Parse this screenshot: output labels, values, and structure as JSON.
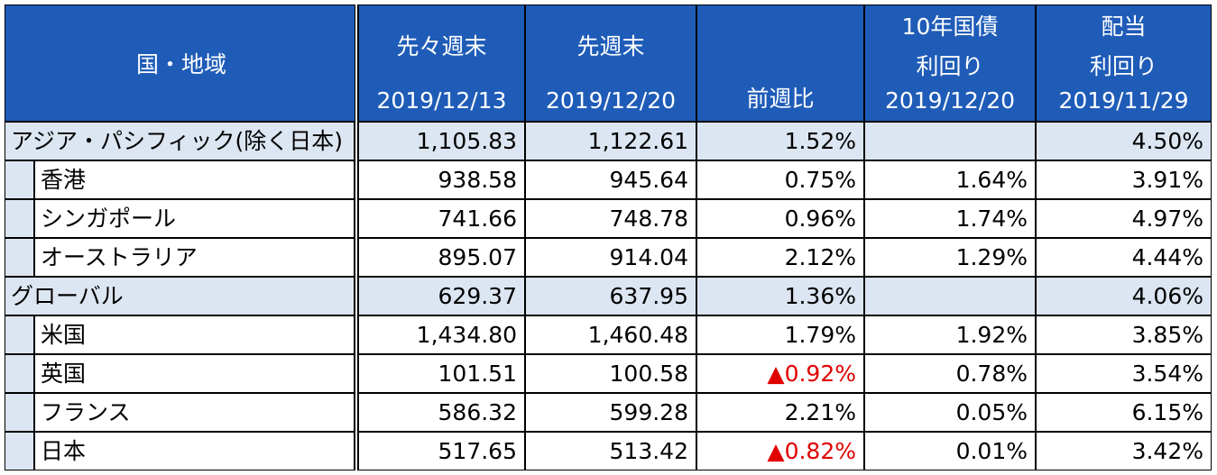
{
  "header": {
    "columns": [
      [
        "国・地域"
      ],
      [
        "先々週末",
        "2019/12/13"
      ],
      [
        "先週末",
        "2019/12/20"
      ],
      [
        "前週比"
      ],
      [
        "10年国債",
        "利回り",
        "2019/12/20"
      ],
      [
        "配当",
        "利回り",
        "2019/11/29"
      ]
    ]
  },
  "table": {
    "rows": [
      {
        "label": "アジア・パシフィック(除く日本)",
        "group": true,
        "cells": [
          "1,105.83",
          "1,122.61",
          "1.52%",
          "",
          "4.50%"
        ]
      },
      {
        "label": "香港",
        "group": false,
        "cells": [
          "938.58",
          "945.64",
          "0.75%",
          "1.64%",
          "3.91%"
        ]
      },
      {
        "label": "シンガポール",
        "group": false,
        "cells": [
          "741.66",
          "748.78",
          "0.96%",
          "1.74%",
          "4.97%"
        ]
      },
      {
        "label": "オーストラリア",
        "group": false,
        "cells": [
          "895.07",
          "914.04",
          "2.12%",
          "1.29%",
          "4.44%"
        ]
      },
      {
        "label": "グローバル",
        "group": true,
        "cells": [
          "629.37",
          "637.95",
          "1.36%",
          "",
          "4.06%"
        ]
      },
      {
        "label": "米国",
        "group": false,
        "cells": [
          "1,434.80",
          "1,460.48",
          "1.79%",
          "1.92%",
          "3.85%"
        ]
      },
      {
        "label": "英国",
        "group": false,
        "cells": [
          "101.51",
          "100.58",
          "▲0.92%",
          "0.78%",
          "3.54%"
        ]
      },
      {
        "label": "フランス",
        "group": false,
        "cells": [
          "586.32",
          "599.28",
          "2.21%",
          "0.05%",
          "6.15%"
        ]
      },
      {
        "label": "日本",
        "group": false,
        "cells": [
          "517.65",
          "513.42",
          "▲0.82%",
          "0.01%",
          "3.42%"
        ]
      }
    ]
  }
}
